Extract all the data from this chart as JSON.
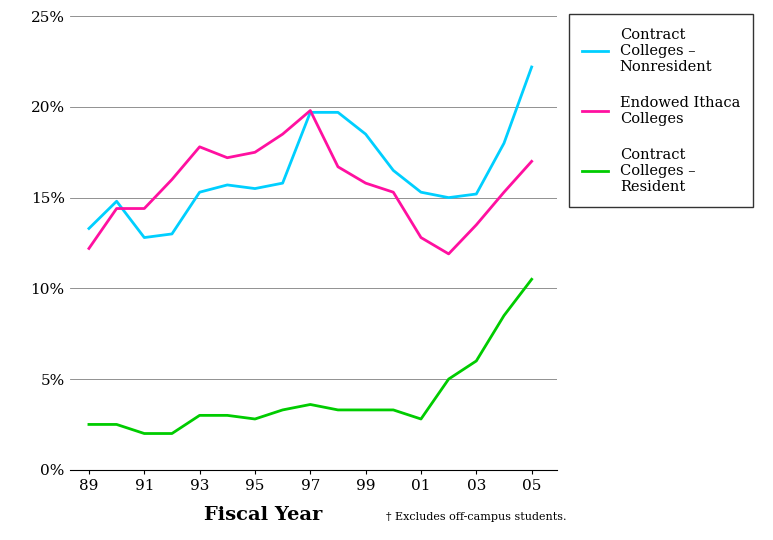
{
  "x_values": [
    1989,
    1990,
    1991,
    1992,
    1993,
    1994,
    1995,
    1996,
    1997,
    1998,
    1999,
    2000,
    2001,
    2002,
    2003,
    2004,
    2005
  ],
  "contract_nonresident": [
    0.133,
    0.148,
    0.128,
    0.13,
    0.153,
    0.157,
    0.155,
    0.158,
    0.197,
    0.197,
    0.185,
    0.165,
    0.153,
    0.15,
    0.152,
    0.18,
    0.222
  ],
  "endowed_ithaca": [
    0.122,
    0.144,
    0.144,
    0.16,
    0.178,
    0.172,
    0.175,
    0.185,
    0.198,
    0.167,
    0.158,
    0.153,
    0.128,
    0.119,
    0.135,
    0.153,
    0.17
  ],
  "contract_resident": [
    0.025,
    0.025,
    0.02,
    0.02,
    0.03,
    0.03,
    0.028,
    0.033,
    0.036,
    0.033,
    0.033,
    0.033,
    0.028,
    0.05,
    0.06,
    0.085,
    0.105
  ],
  "color_nonresident": "#00CFFF",
  "color_endowed": "#FF10A0",
  "color_resident": "#00CC00",
  "xlabel": "Fiscal Year",
  "footnote": "† Excludes off-campus students.",
  "legend_nonresident": "Contract\nColleges –\nNonresident",
  "legend_endowed": "Endowed Ithaca\nColleges",
  "legend_resident": "Contract\nColleges –\nResident",
  "ylim": [
    0,
    0.25
  ],
  "yticks": [
    0.0,
    0.05,
    0.1,
    0.15,
    0.2,
    0.25
  ],
  "ytick_labels": [
    "0%",
    "5%",
    "10%",
    "15%",
    "20%",
    "25%"
  ],
  "xtick_positions": [
    1989,
    1991,
    1993,
    1995,
    1997,
    1999,
    2001,
    2003,
    2005
  ],
  "xtick_labels": [
    "89",
    "91",
    "93",
    "95",
    "97",
    "99",
    "01",
    "03",
    "05"
  ]
}
